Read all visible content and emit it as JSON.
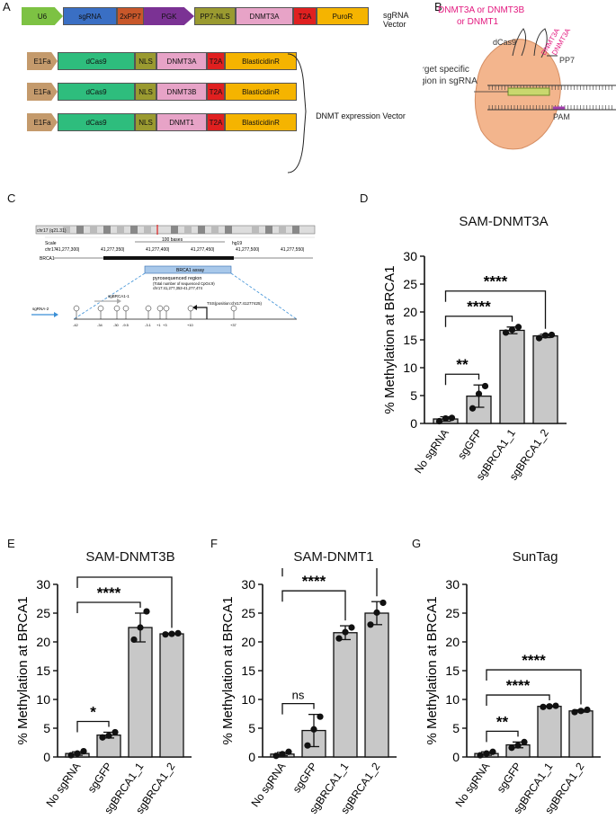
{
  "panels": {
    "A": "A",
    "B": "B",
    "C": "C",
    "D": "D",
    "E": "E",
    "F": "F",
    "G": "G"
  },
  "panelA": {
    "sg_vector_label": "sgRNA Vector",
    "expr_vector_label": "DNMT expression Vector",
    "sg_row": [
      {
        "label": "U6",
        "color": "#7dc243",
        "kind": "arrow"
      },
      {
        "label": "sgRNA",
        "color": "#3a6fc4",
        "kind": "box"
      },
      {
        "label": "2xPP7",
        "color": "#c8572a",
        "kind": "box"
      },
      {
        "label": "PGK",
        "color": "#7b3294",
        "kind": "arrow"
      },
      {
        "label": "PP7-NLS",
        "color": "#9a9a30",
        "kind": "box"
      },
      {
        "label": "DNMT3A",
        "color": "#e7a3c7",
        "kind": "box"
      },
      {
        "label": "T2A",
        "color": "#e02020",
        "kind": "box"
      },
      {
        "label": "PuroR",
        "color": "#f5b400",
        "kind": "box"
      }
    ],
    "expr_rows": [
      [
        {
          "label": "E1Fa",
          "color": "#c49a6c"
        },
        {
          "label": "dCas9",
          "color": "#2ebd7d"
        },
        {
          "label": "NLS",
          "color": "#9a9a30"
        },
        {
          "label": "DNMT3A",
          "color": "#e7a3c7"
        },
        {
          "label": "T2A",
          "color": "#e02020"
        },
        {
          "label": "BlasticidinR",
          "color": "#f5b400"
        }
      ],
      [
        {
          "label": "E1Fa",
          "color": "#c49a6c"
        },
        {
          "label": "dCas9",
          "color": "#2ebd7d"
        },
        {
          "label": "NLS",
          "color": "#9a9a30"
        },
        {
          "label": "DNMT3B",
          "color": "#e7a3c7"
        },
        {
          "label": "T2A",
          "color": "#e02020"
        },
        {
          "label": "BlasticidinR",
          "color": "#f5b400"
        }
      ],
      [
        {
          "label": "E1Fa",
          "color": "#c49a6c"
        },
        {
          "label": "dCas9",
          "color": "#2ebd7d"
        },
        {
          "label": "NLS",
          "color": "#9a9a30"
        },
        {
          "label": "DNMT1",
          "color": "#e7a3c7"
        },
        {
          "label": "T2A",
          "color": "#e02020"
        },
        {
          "label": "BlasticidinR",
          "color": "#f5b400"
        }
      ]
    ]
  },
  "panelB": {
    "enzyme_label": "DNMT3A or DNMT3B\nor DNMT1",
    "dcas9": "dCas9",
    "side_label": "DNMT3A",
    "pp7": "PP7",
    "target": "Target specific\nregion in sgRNA",
    "pam": "PAM"
  },
  "panelC": {
    "chrom": "chr17 (q21.31)",
    "scale": "Scale",
    "chr": "chr17:",
    "bases": "100 bases",
    "build": "hg19",
    "ticks": [
      "41,277,300|",
      "41,277,350|",
      "41,277,400|",
      "41,277,450|",
      "41,277,500|",
      "41,277,550|"
    ],
    "gene": "BRCA1",
    "assay": "BRCA1 assay",
    "pyro_title": "pyrosequenced region",
    "pyro_sub": "(Total number of sequenced CpGs:9)",
    "pyro_coords": "chr17:41,277,353-41,277,474",
    "sg1": "sgBRCA1-1",
    "sg2": "sgRNA-2",
    "tss": "TSS(position:chr17:41277425)",
    "positions": [
      "-42",
      "-34",
      "-30",
      "-9.5",
      "-3.1",
      "+1",
      "+3",
      "+10",
      "+37"
    ]
  },
  "chart_data": [
    {
      "id": "D",
      "type": "bar",
      "title": "SAM-DNMT3A",
      "ylabel": "% Methylation at BRCA1",
      "categories": [
        "No sgRNA",
        "sgGFP",
        "sgBRCA1_1",
        "sgBRCA1_2"
      ],
      "values": [
        0.8,
        4.9,
        16.7,
        15.7
      ],
      "errors": [
        0.4,
        2.0,
        0.6,
        0.3
      ],
      "points": [
        [
          0.4,
          0.9,
          1.0
        ],
        [
          2.7,
          5.3,
          6.7
        ],
        [
          16.3,
          16.8,
          17.3
        ],
        [
          15.3,
          15.8,
          15.9
        ]
      ],
      "ylim": [
        0,
        30
      ],
      "yticks": [
        0,
        5,
        10,
        15,
        20,
        25,
        30
      ],
      "sig": [
        {
          "label": "**",
          "to": 1
        },
        {
          "label": "****",
          "to": 2
        },
        {
          "label": "****",
          "to": 3
        }
      ]
    },
    {
      "id": "E",
      "type": "bar",
      "title": "SAM-DNMT3B",
      "ylabel": "% Methylation at BRCA1",
      "categories": [
        "No sgRNA",
        "sgGFP",
        "sgBRCA1_1",
        "sgBRCA1_2"
      ],
      "values": [
        0.6,
        3.8,
        22.5,
        21.4
      ],
      "errors": [
        0.3,
        0.5,
        2.5,
        0.1
      ],
      "points": [
        [
          0.3,
          0.6,
          1.0
        ],
        [
          3.4,
          3.7,
          4.3
        ],
        [
          20.4,
          22.5,
          25.3
        ],
        [
          21.3,
          21.4,
          21.5
        ]
      ],
      "ylim": [
        0,
        30
      ],
      "yticks": [
        0,
        5,
        10,
        15,
        20,
        25,
        30
      ],
      "sig": [
        {
          "label": "*",
          "to": 1
        },
        {
          "label": "****",
          "to": 2
        },
        {
          "label": "****",
          "to": 3
        }
      ]
    },
    {
      "id": "F",
      "type": "bar",
      "title": "SAM-DNMT1",
      "ylabel": "% Methylation at BRCA1",
      "categories": [
        "No sgRNA",
        "sgGFP",
        "sgBRCA1_1",
        "sgBRCA1_2"
      ],
      "values": [
        0.5,
        4.6,
        21.6,
        25.0
      ],
      "errors": [
        0.3,
        2.8,
        1.2,
        2.0
      ],
      "points": [
        [
          0.2,
          0.5,
          0.9
        ],
        [
          2.0,
          4.8,
          7.0
        ],
        [
          20.6,
          21.7,
          22.5
        ],
        [
          23.0,
          25.1,
          26.8
        ]
      ],
      "ylim": [
        0,
        30
      ],
      "yticks": [
        0,
        5,
        10,
        15,
        20,
        25,
        30
      ],
      "sig": [
        {
          "label": "ns",
          "to": 1
        },
        {
          "label": "****",
          "to": 2
        },
        {
          "label": "****",
          "to": 3
        }
      ]
    },
    {
      "id": "G",
      "type": "bar",
      "title": "SunTag",
      "ylabel": "% Methylation at BRCA1",
      "categories": [
        "No sgRNA",
        "sgGFP",
        "sgBRCA1_1",
        "sgBRCA1_2"
      ],
      "values": [
        0.6,
        2.1,
        8.8,
        8.0
      ],
      "errors": [
        0.3,
        0.5,
        0.1,
        0.2
      ],
      "points": [
        [
          0.3,
          0.6,
          0.9
        ],
        [
          1.6,
          2.0,
          2.6
        ],
        [
          8.7,
          8.8,
          8.9
        ],
        [
          7.8,
          8.0,
          8.2
        ]
      ],
      "ylim": [
        0,
        30
      ],
      "yticks": [
        0,
        5,
        10,
        15,
        20,
        25,
        30
      ],
      "sig": [
        {
          "label": "**",
          "to": 1
        },
        {
          "label": "****",
          "to": 2
        },
        {
          "label": "****",
          "to": 3
        }
      ]
    }
  ]
}
